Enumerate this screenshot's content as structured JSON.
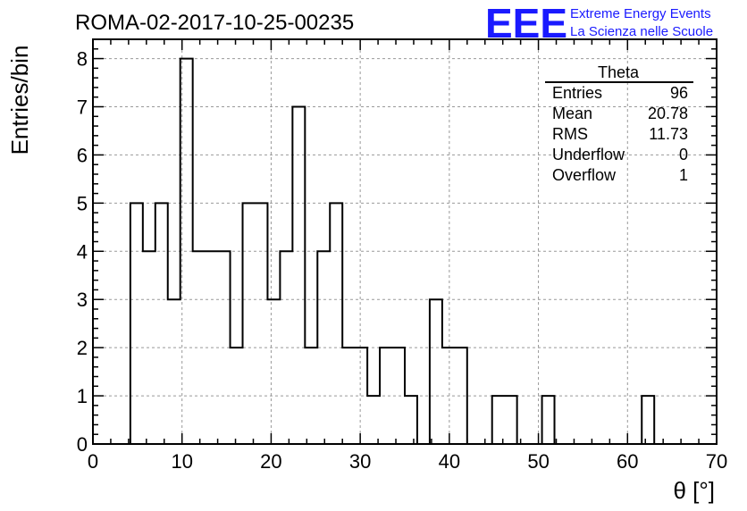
{
  "title": "ROMA-02-2017-10-25-00235",
  "logo": {
    "mark": "EEE",
    "line1": "Extreme Energy Events",
    "line2": "La Scienza nelle Scuole",
    "color": "#1a1aff"
  },
  "stats": {
    "name": "Theta",
    "rows": [
      {
        "label": "Entries",
        "value": "96"
      },
      {
        "label": "Mean",
        "value": "20.78"
      },
      {
        "label": "RMS",
        "value": "11.73"
      },
      {
        "label": "Underflow",
        "value": "0"
      },
      {
        "label": "Overflow",
        "value": "1"
      }
    ]
  },
  "chart_data": {
    "type": "histogram",
    "title": "ROMA-02-2017-10-25-00235",
    "xlabel": "θ [°]",
    "ylabel": "Entries/bin",
    "xlim": [
      0,
      70
    ],
    "ylim": [
      0,
      8.4
    ],
    "xticks": [
      0,
      10,
      20,
      30,
      40,
      50,
      60,
      70
    ],
    "yticks": [
      0,
      1,
      2,
      3,
      4,
      5,
      6,
      7,
      8
    ],
    "grid": true,
    "bin_width": 1.4,
    "bin_start": 0,
    "values": [
      0,
      0,
      0,
      5,
      4,
      5,
      3,
      8,
      4,
      4,
      4,
      2,
      5,
      5,
      3,
      4,
      7,
      2,
      4,
      5,
      2,
      2,
      1,
      2,
      2,
      1,
      0,
      3,
      2,
      2,
      0,
      0,
      1,
      1,
      0,
      0,
      1,
      0,
      0,
      0,
      0,
      0,
      0,
      0,
      1,
      0,
      0,
      0,
      0,
      0
    ]
  }
}
